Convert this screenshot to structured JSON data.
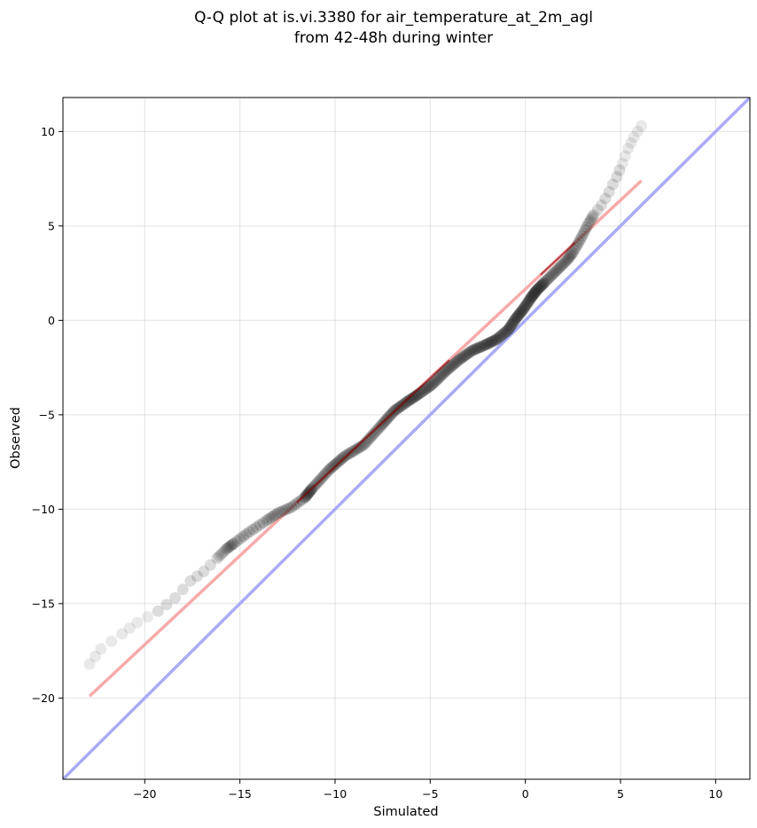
{
  "chart_data": {
    "type": "scatter",
    "title_line1": "Q-Q plot at is.vi.3380 for air_temperature_at_2m_agl",
    "title_line2": "from 42-48h during winter",
    "xlabel": "Simulated",
    "ylabel": "Observed",
    "xlim": [
      -24.3,
      11.8
    ],
    "ylim": [
      -24.3,
      11.8
    ],
    "xticks": [
      -20,
      -15,
      -10,
      -5,
      0,
      5,
      10
    ],
    "yticks": [
      -20,
      -15,
      -10,
      -5,
      0,
      5,
      10
    ],
    "grid": true,
    "colors": {
      "points": "#262626",
      "identity_line": "#aaaaf7",
      "fit_line": "#f7aaaa",
      "fit_line_core": "#8b0000"
    },
    "identity_line": {
      "x": [
        -24.3,
        11.8
      ],
      "y": [
        -24.3,
        11.8
      ]
    },
    "fit_line": {
      "x": [
        -22.9,
        6.1
      ],
      "y": [
        -19.9,
        7.4
      ]
    },
    "quantile_curve": {
      "x": [
        -22.9,
        -22.3,
        -21.2,
        -20.4,
        -19.3,
        -18.4,
        -17.6,
        -16.9,
        -16.2,
        -15.7,
        -15.3,
        -14.5,
        -13.6,
        -13.0,
        -12.3,
        -11.6,
        -11.2,
        -10.3,
        -9.5,
        -8.5,
        -7.6,
        -6.9,
        -6.2,
        -5.6,
        -4.9,
        -4.2,
        -3.5,
        -2.8,
        -2.1,
        -1.5,
        -0.9,
        -0.5,
        -0.1,
        0.3,
        0.6,
        1.0,
        1.4,
        1.8,
        2.2,
        2.5,
        2.9,
        3.3,
        3.6,
        4.0,
        4.4,
        4.8,
        5.1,
        5.4,
        5.7,
        6.1
      ],
      "y": [
        -18.2,
        -17.4,
        -16.6,
        -16.0,
        -15.4,
        -14.7,
        -13.8,
        -13.3,
        -12.6,
        -12.1,
        -11.8,
        -11.2,
        -10.6,
        -10.2,
        -9.9,
        -9.4,
        -8.9,
        -7.9,
        -7.2,
        -6.6,
        -5.6,
        -4.8,
        -4.3,
        -3.9,
        -3.4,
        -2.7,
        -2.1,
        -1.6,
        -1.3,
        -1.0,
        -0.5,
        0.1,
        0.6,
        1.2,
        1.6,
        2.0,
        2.4,
        2.8,
        3.2,
        3.6,
        4.3,
        5.1,
        5.6,
        6.1,
        6.8,
        7.6,
        8.3,
        9.1,
        9.7,
        10.3
      ]
    }
  }
}
